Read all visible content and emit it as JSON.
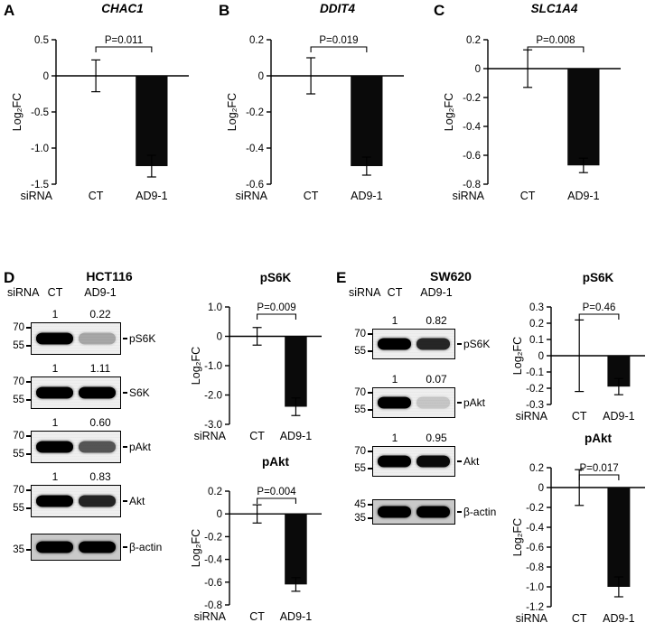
{
  "colors": {
    "bar": "#0a0a0a",
    "background": "#ffffff"
  },
  "panels": {
    "A": {
      "letter": "A"
    },
    "B": {
      "letter": "B"
    },
    "C": {
      "letter": "C"
    },
    "D": {
      "letter": "D",
      "cell_line": "HCT116",
      "sirna_label": "siRNA",
      "lane_labels": [
        "CT",
        "AD9-1"
      ],
      "blots": [
        {
          "values": [
            "1",
            "0.22"
          ],
          "markers": [
            "70",
            "55"
          ],
          "protein": "pS6K"
        },
        {
          "values": [
            "1",
            "1.11"
          ],
          "markers": [
            "70",
            "55"
          ],
          "protein": "S6K"
        },
        {
          "values": [
            "1",
            "0.60"
          ],
          "markers": [
            "70",
            "55"
          ],
          "protein": "pAkt"
        },
        {
          "values": [
            "1",
            "0.83"
          ],
          "markers": [
            "70",
            "55"
          ],
          "protein": "Akt"
        },
        {
          "markers": [
            "35"
          ],
          "protein": "β-actin"
        }
      ]
    },
    "E": {
      "letter": "E",
      "cell_line": "SW620",
      "sirna_label": "siRNA",
      "lane_labels": [
        "CT",
        "AD9-1"
      ],
      "blots": [
        {
          "values": [
            "1",
            "0.82"
          ],
          "markers": [
            "70",
            "55"
          ],
          "protein": "pS6K"
        },
        {
          "values": [
            "1",
            "0.07"
          ],
          "markers": [
            "70",
            "55"
          ],
          "protein": "pAkt"
        },
        {
          "values": [
            "1",
            "0.95"
          ],
          "markers": [
            "70",
            "55"
          ],
          "protein": "Akt"
        },
        {
          "markers": [
            "45",
            "35"
          ],
          "protein": "β-actin"
        }
      ]
    }
  },
  "chart_data": [
    {
      "panel": "A",
      "type": "bar",
      "title": "CHAC1",
      "title_italic": true,
      "p_label": "P=0.011",
      "ylabel": "Log₂FC",
      "xlabel": "siRNA",
      "categories": [
        "CT",
        "AD9-1"
      ],
      "values": [
        0,
        -1.25
      ],
      "errors": [
        0.22,
        0.15
      ],
      "ylim": [
        -1.5,
        0.5
      ],
      "ytick_labels": [
        "0.5",
        "0",
        "-0.5",
        "-1.0",
        "-1.5"
      ],
      "grid": false,
      "legend": false
    },
    {
      "panel": "B",
      "type": "bar",
      "title": "DDIT4",
      "title_italic": true,
      "p_label": "P=0.019",
      "ylabel": "Log₂FC",
      "xlabel": "siRNA",
      "categories": [
        "CT",
        "AD9-1"
      ],
      "values": [
        0,
        -0.5
      ],
      "errors": [
        0.1,
        0.05
      ],
      "ylim": [
        -0.6,
        0.2
      ],
      "ytick_labels": [
        "0.2",
        "0",
        "-0.2",
        "-0.4",
        "-0.6"
      ],
      "grid": false,
      "legend": false
    },
    {
      "panel": "C",
      "type": "bar",
      "title": "SLC1A4",
      "title_italic": true,
      "p_label": "P=0.008",
      "ylabel": "Log₂FC",
      "xlabel": "siRNA",
      "categories": [
        "CT",
        "AD9-1"
      ],
      "values": [
        0,
        -0.67
      ],
      "errors": [
        0.13,
        0.05
      ],
      "ylim": [
        -0.8,
        0.2
      ],
      "ytick_labels": [
        "0.2",
        "0",
        "-0.2",
        "-0.4",
        "-0.6",
        "-0.8"
      ],
      "grid": false,
      "legend": false
    },
    {
      "panel": "D",
      "type": "bar",
      "title": "pS6K",
      "title_italic": false,
      "p_label": "P=0.009",
      "ylabel": "Log₂FC",
      "xlabel": "siRNA",
      "categories": [
        "CT",
        "AD9-1"
      ],
      "values": [
        0,
        -2.4
      ],
      "errors": [
        0.3,
        0.3
      ],
      "ylim": [
        -3.0,
        1.0
      ],
      "ytick_labels": [
        "1.0",
        "0",
        "-1.0",
        "-2.0",
        "-3.0"
      ],
      "grid": false,
      "legend": false
    },
    {
      "panel": "D",
      "type": "bar",
      "title": "pAkt",
      "title_italic": false,
      "p_label": "P=0.004",
      "ylabel": "Log₂FC",
      "xlabel": "siRNA",
      "categories": [
        "CT",
        "AD9-1"
      ],
      "values": [
        0,
        -0.62
      ],
      "errors": [
        0.08,
        0.06
      ],
      "ylim": [
        -0.8,
        0.2
      ],
      "ytick_labels": [
        "0.2",
        "0",
        "-0.2",
        "-0.4",
        "-0.6",
        "-0.8"
      ],
      "grid": false,
      "legend": false
    },
    {
      "panel": "E",
      "type": "bar",
      "title": "pS6K",
      "title_italic": false,
      "p_label": "P=0.46",
      "ylabel": "Log₂FC",
      "xlabel": "siRNA",
      "categories": [
        "CT",
        "AD9-1"
      ],
      "values": [
        0,
        -0.19
      ],
      "errors": [
        0.22,
        0.05
      ],
      "ylim": [
        -0.3,
        0.3
      ],
      "ytick_labels": [
        "0.3",
        "0.2",
        "0.1",
        "0",
        "-0.1",
        "-0.2",
        "-0.3"
      ],
      "grid": false,
      "legend": false
    },
    {
      "panel": "E",
      "type": "bar",
      "title": "pAkt",
      "title_italic": false,
      "p_label": "P=0.017",
      "ylabel": "Log₂FC",
      "xlabel": "siRNA",
      "categories": [
        "CT",
        "AD9-1"
      ],
      "values": [
        0,
        -1.0
      ],
      "errors": [
        0.18,
        0.1
      ],
      "ylim": [
        -1.2,
        0.2
      ],
      "ytick_labels": [
        "0.2",
        "0",
        "-0.2",
        "-0.4",
        "-0.6",
        "-0.8",
        "-1.0",
        "-1.2"
      ],
      "grid": false,
      "legend": false
    }
  ]
}
